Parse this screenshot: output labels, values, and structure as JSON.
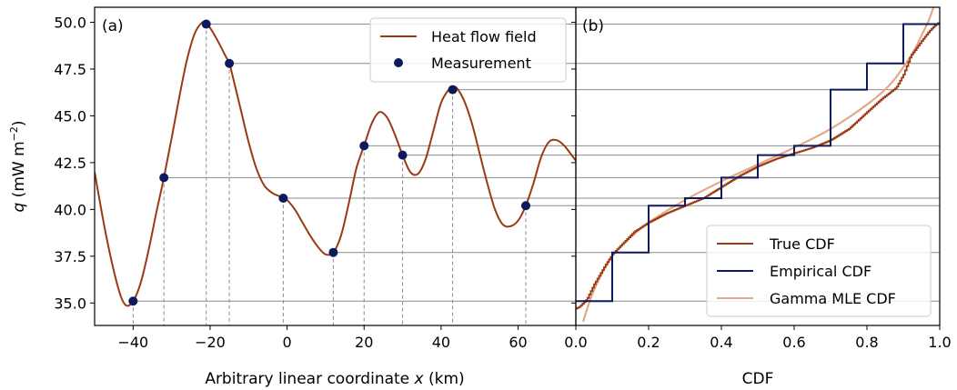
{
  "chart_data": [
    {
      "type": "line",
      "panel": "a",
      "panel_label": "(a)",
      "xlabel": "Arbitrary linear coordinate ",
      "xlabel_var": "x",
      "xlabel_unit": " (km)",
      "ylabel_var": "q",
      "ylabel_unit": " (mW m",
      "ylabel_exp": "−2",
      "ylabel_close": ")",
      "xlim": [
        -50,
        75
      ],
      "ylim": [
        33.8,
        50.8
      ],
      "xticks": [
        -40,
        -20,
        0,
        20,
        40,
        60
      ],
      "xtick_labels": [
        "−40",
        "−20",
        "0",
        "20",
        "40",
        "60"
      ],
      "yticks": [
        35.0,
        37.5,
        40.0,
        42.5,
        45.0,
        47.5,
        50.0
      ],
      "ytick_labels": [
        "35.0",
        "37.5",
        "40.0",
        "42.5",
        "45.0",
        "47.5",
        "50.0"
      ],
      "legend": {
        "placement": "top-right",
        "entries": [
          {
            "label": "Heat flow field",
            "color": "#9b3a12"
          },
          {
            "label": "Measurement",
            "color": "#0d1a5c"
          }
        ]
      },
      "field_curve": {
        "name": "Heat flow field",
        "color": "#9b3a12",
        "x": [
          -50,
          -47,
          -44,
          -42,
          -40,
          -38,
          -36,
          -34,
          -32,
          -30,
          -28,
          -26,
          -24,
          -22,
          -21,
          -20,
          -18,
          -16,
          -15,
          -14,
          -12,
          -10,
          -8,
          -6,
          -4,
          -2,
          -1,
          0,
          2,
          4,
          6,
          8,
          10,
          12,
          14,
          16,
          18,
          20,
          22,
          24,
          26,
          28,
          30,
          32,
          34,
          36,
          38,
          40,
          42,
          43,
          44,
          46,
          48,
          50,
          52,
          54,
          56,
          58,
          60,
          62,
          64,
          66,
          68,
          70,
          72,
          75
        ],
        "y": [
          42.0,
          38.6,
          35.9,
          34.9,
          35.1,
          36.1,
          37.8,
          39.8,
          41.7,
          43.8,
          46.0,
          48.0,
          49.4,
          50.0,
          49.9,
          49.7,
          49.0,
          48.2,
          47.8,
          47.0,
          45.3,
          43.6,
          42.2,
          41.3,
          40.9,
          40.7,
          40.6,
          40.5,
          40.0,
          39.3,
          38.6,
          38.0,
          37.6,
          37.7,
          38.6,
          40.3,
          42.2,
          43.4,
          44.6,
          45.2,
          44.9,
          44.0,
          42.9,
          42.0,
          41.9,
          42.7,
          44.2,
          45.7,
          46.4,
          46.5,
          46.5,
          45.8,
          44.6,
          43.0,
          41.4,
          40.0,
          39.2,
          39.1,
          39.4,
          40.2,
          41.4,
          42.8,
          43.6,
          43.7,
          43.4,
          42.6
        ]
      },
      "measurements": {
        "name": "Measurement",
        "color": "#0d1a5c",
        "x": [
          -40,
          -32,
          -21,
          -15,
          -1,
          12,
          20,
          30,
          43,
          62
        ],
        "y": [
          35.1,
          41.7,
          49.9,
          47.8,
          40.6,
          37.7,
          43.4,
          42.9,
          46.4,
          40.2
        ]
      }
    },
    {
      "type": "line",
      "panel": "b",
      "panel_label": "(b)",
      "xlabel": "CDF",
      "xlim": [
        0.0,
        1.0
      ],
      "ylim": [
        33.8,
        50.8
      ],
      "xticks": [
        0.0,
        0.2,
        0.4,
        0.6,
        0.8,
        1.0
      ],
      "xtick_labels": [
        "0.0",
        "0.2",
        "0.4",
        "0.6",
        "0.8",
        "1.0"
      ],
      "legend": {
        "placement": "bottom-right",
        "entries": [
          {
            "label": "True CDF",
            "color": "#9b3a12"
          },
          {
            "label": "Empirical CDF",
            "color": "#0d1a5c"
          },
          {
            "label": "Gamma MLE CDF",
            "color": "#e3a98a"
          }
        ]
      },
      "series": [
        {
          "name": "True CDF",
          "color": "#9b3a12",
          "x": [
            0.0,
            0.01,
            0.03,
            0.05,
            0.08,
            0.1,
            0.13,
            0.16,
            0.2,
            0.25,
            0.3,
            0.35,
            0.4,
            0.45,
            0.5,
            0.55,
            0.6,
            0.65,
            0.7,
            0.75,
            0.8,
            0.84,
            0.88,
            0.9,
            0.92,
            0.95,
            0.97,
            0.99,
            1.0
          ],
          "y": [
            34.7,
            34.8,
            35.2,
            36.0,
            37.0,
            37.6,
            38.2,
            38.8,
            39.3,
            39.8,
            40.2,
            40.6,
            41.2,
            41.8,
            42.3,
            42.7,
            43.0,
            43.3,
            43.7,
            44.3,
            45.2,
            45.9,
            46.5,
            47.2,
            48.2,
            49.0,
            49.5,
            49.9,
            50.0
          ]
        },
        {
          "name": "Empirical CDF",
          "color": "#0d1a5c",
          "x": [
            0.0,
            0.1,
            0.2,
            0.3,
            0.4,
            0.5,
            0.6,
            0.7,
            0.8,
            0.9,
            1.0
          ],
          "y": [
            35.1,
            37.7,
            40.2,
            40.6,
            41.7,
            42.9,
            43.4,
            46.4,
            47.8,
            49.9,
            49.9
          ]
        },
        {
          "name": "Gamma MLE CDF",
          "color": "#e3a98a",
          "x": [
            0.02,
            0.05,
            0.1,
            0.15,
            0.2,
            0.3,
            0.4,
            0.5,
            0.6,
            0.7,
            0.8,
            0.86,
            0.9,
            0.93,
            0.95,
            0.97,
            0.99
          ],
          "y": [
            34.0,
            35.7,
            37.5,
            38.5,
            39.3,
            40.5,
            41.5,
            42.4,
            43.3,
            44.3,
            45.6,
            46.6,
            47.6,
            48.5,
            49.3,
            50.1,
            51.2
          ]
        }
      ]
    }
  ]
}
